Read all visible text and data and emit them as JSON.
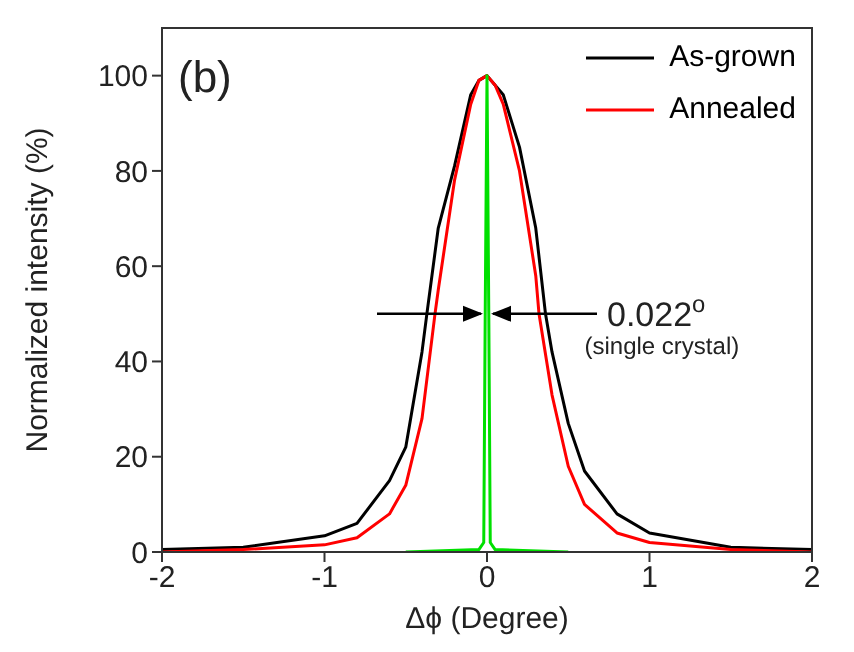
{
  "chart_data": {
    "type": "line",
    "xlabel": "Δϕ (Degree)",
    "ylabel": "Normalized intensity (%)",
    "xlim": [
      -2,
      2
    ],
    "ylim": [
      0,
      110
    ],
    "xticks": [
      -2,
      -1,
      0,
      1,
      2
    ],
    "yticks": [
      0,
      20,
      40,
      60,
      80,
      100
    ],
    "grid": false,
    "legend": "top right",
    "marker": "none",
    "line_style": "solid",
    "annotations": [
      "(b)",
      "0.022$^{o}$",
      "(single crystal)"
    ],
    "series": [
      {
        "name": "As-grown",
        "color": "#000000",
        "x": [
          -2,
          -1.5,
          -1,
          -0.8,
          -0.6,
          -0.5,
          -0.4,
          -0.37,
          -0.3,
          -0.2,
          -0.1,
          -0.05,
          0,
          0.05,
          0.1,
          0.2,
          0.3,
          0.36,
          0.4,
          0.5,
          0.6,
          0.8,
          1,
          1.5,
          2
        ],
        "values": [
          0.5,
          1,
          3.4,
          6,
          15,
          22,
          42,
          50,
          68,
          81,
          96,
          99,
          100,
          98,
          96,
          85,
          68,
          50,
          42,
          27,
          17,
          8,
          4,
          1,
          0.5
        ]
      },
      {
        "name": "Annealed",
        "color": "#ff0000",
        "x": [
          -2,
          -1.5,
          -1,
          -0.8,
          -0.6,
          -0.5,
          -0.4,
          -0.32,
          -0.3,
          -0.2,
          -0.1,
          -0.05,
          0,
          0.05,
          0.1,
          0.2,
          0.3,
          0.32,
          0.4,
          0.5,
          0.6,
          0.8,
          1,
          1.5,
          2
        ],
        "values": [
          0,
          0.5,
          1.5,
          3,
          8,
          14,
          28,
          50,
          55,
          78,
          94,
          99,
          100,
          98,
          94,
          80,
          58,
          50,
          33,
          18,
          10,
          4,
          2,
          0.5,
          0
        ]
      },
      {
        "color": "#00e000",
        "x": [
          -0.5,
          -0.05,
          -0.02,
          -0.011,
          0,
          0.011,
          0.02,
          0.05,
          0.5
        ],
        "values": [
          0,
          0.5,
          2,
          50,
          100,
          50,
          2,
          0.5,
          0
        ]
      }
    ]
  }
}
